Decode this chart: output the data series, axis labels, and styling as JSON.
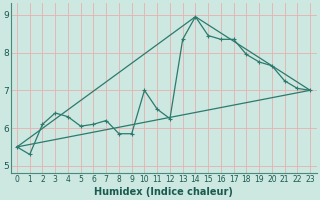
{
  "title": "",
  "xlabel": "Humidex (Indice chaleur)",
  "bg_color": "#cce8e0",
  "grid_color": "#e8b0b0",
  "line_color": "#2d7a6e",
  "spine_color": "#4a8a7e",
  "text_color": "#1a5a50",
  "xlim": [
    -0.5,
    23.5
  ],
  "ylim": [
    4.8,
    9.3
  ],
  "xticks": [
    0,
    1,
    2,
    3,
    4,
    5,
    6,
    7,
    8,
    9,
    10,
    11,
    12,
    13,
    14,
    15,
    16,
    17,
    18,
    19,
    20,
    21,
    22,
    23
  ],
  "yticks": [
    5,
    6,
    7,
    8,
    9
  ],
  "series1_x": [
    0,
    1,
    2,
    3,
    4,
    5,
    6,
    7,
    8,
    9,
    10,
    11,
    12,
    13,
    14,
    15,
    16,
    17,
    18,
    19,
    20,
    21,
    22,
    23
  ],
  "series1_y": [
    5.5,
    5.3,
    6.1,
    6.4,
    6.3,
    6.05,
    6.1,
    6.2,
    5.85,
    5.85,
    7.0,
    6.5,
    6.25,
    8.35,
    8.95,
    8.45,
    8.35,
    8.35,
    7.95,
    7.75,
    7.65,
    7.25,
    7.05,
    7.0
  ],
  "series2_x": [
    0,
    23
  ],
  "series2_y": [
    5.5,
    7.0
  ],
  "series3_x": [
    0,
    14,
    23
  ],
  "series3_y": [
    5.5,
    8.95,
    7.0
  ],
  "xlabel_fontsize": 7,
  "tick_fontsize": 5.5,
  "ytick_fontsize": 6.5
}
